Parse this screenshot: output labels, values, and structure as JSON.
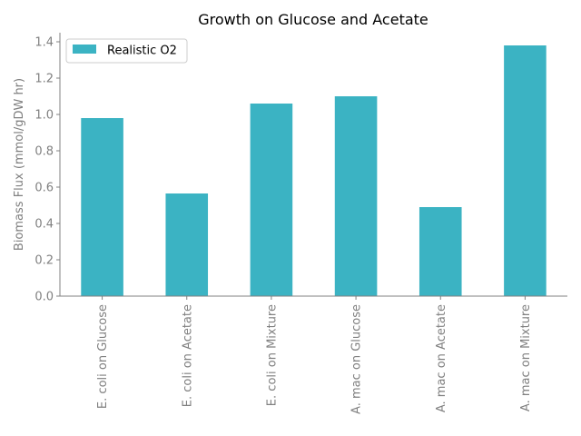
{
  "chart_data": {
    "type": "bar",
    "title": "Growth on Glucose and Acetate",
    "xlabel": "",
    "ylabel": "Biomass Flux (mmol/gDW hr)",
    "categories": [
      "E. coli on Glucose",
      "E. coli on Acetate",
      "E. coli on Mixture",
      "A. mac on Glucose",
      "A. mac on Acetate",
      "A. mac on Mixture"
    ],
    "series": [
      {
        "name": "Realistic O2",
        "values": [
          0.98,
          0.565,
          1.06,
          1.1,
          0.49,
          1.38
        ],
        "color": "#3bb3c3"
      }
    ],
    "ylim": [
      0,
      1.45
    ],
    "yticks": [
      0.0,
      0.2,
      0.4,
      0.6,
      0.8,
      1.0,
      1.2,
      1.4
    ],
    "ytick_labels": [
      "0.0",
      "0.2",
      "0.4",
      "0.6",
      "0.8",
      "1.0",
      "1.2",
      "1.4"
    ],
    "grid": false,
    "legend_position": "top-left",
    "axis_color": "#808080"
  }
}
